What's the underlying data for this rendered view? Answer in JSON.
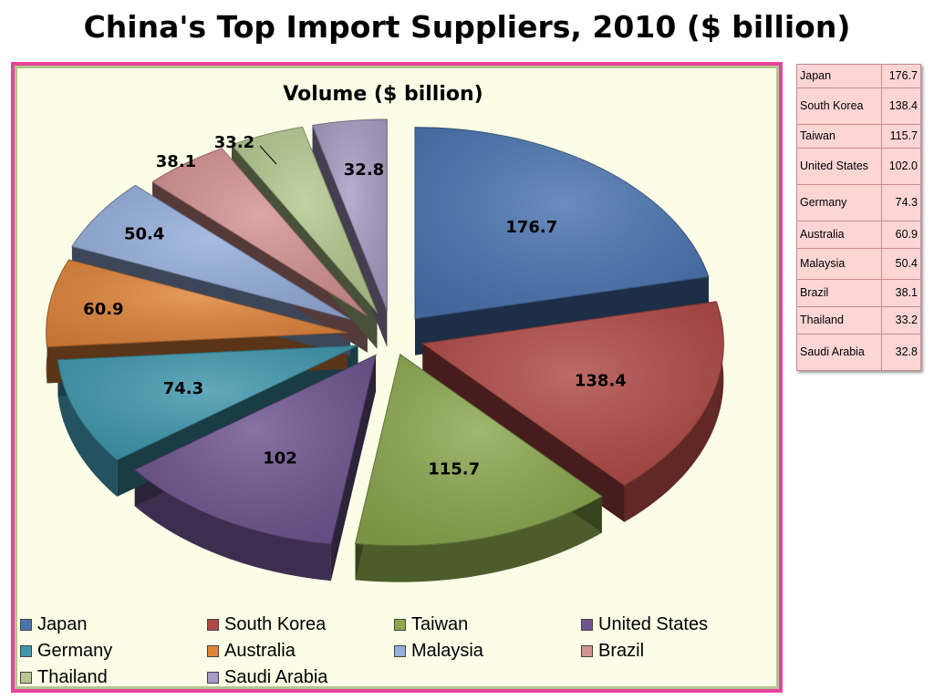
{
  "slide": {
    "title": "China's Top Import Suppliers, 2010 ($ billion)"
  },
  "chart_data": {
    "type": "pie",
    "title": "Volume ($ billion)",
    "categories": [
      "Japan",
      "South Korea",
      "Taiwan",
      "United States",
      "Germany",
      "Australia",
      "Malaysia",
      "Brazil",
      "Thailand",
      "Saudi Arabia"
    ],
    "values": [
      176.7,
      138.4,
      115.7,
      102,
      74.3,
      60.9,
      50.4,
      38.1,
      33.2,
      32.8
    ],
    "data_labels": [
      "176.7",
      "138.4",
      "115.7",
      "102",
      "74.3",
      "60.9",
      "50.4",
      "38.1",
      "33.2",
      "32.8"
    ],
    "colors": [
      "#4a74b0",
      "#b04945",
      "#8aa84e",
      "#6e548f",
      "#3e97ad",
      "#e0843a",
      "#95aedb",
      "#d59292",
      "#b5c98f",
      "#a99cc2"
    ],
    "exploded": true,
    "legend": "bottom"
  },
  "table": {
    "rows": [
      {
        "country": "Japan",
        "value": "176.7"
      },
      {
        "country": "South Korea",
        "value": "138.4"
      },
      {
        "country": "Taiwan",
        "value": "115.7"
      },
      {
        "country": "United States",
        "value": "102.0"
      },
      {
        "country": "Germany",
        "value": "74.3"
      },
      {
        "country": "Australia",
        "value": "60.9"
      },
      {
        "country": "Malaysia",
        "value": "50.4"
      },
      {
        "country": "Brazil",
        "value": "38.1"
      },
      {
        "country": "Thailand",
        "value": "33.2"
      },
      {
        "country": "Saudi Arabia",
        "value": "32.8"
      }
    ]
  }
}
